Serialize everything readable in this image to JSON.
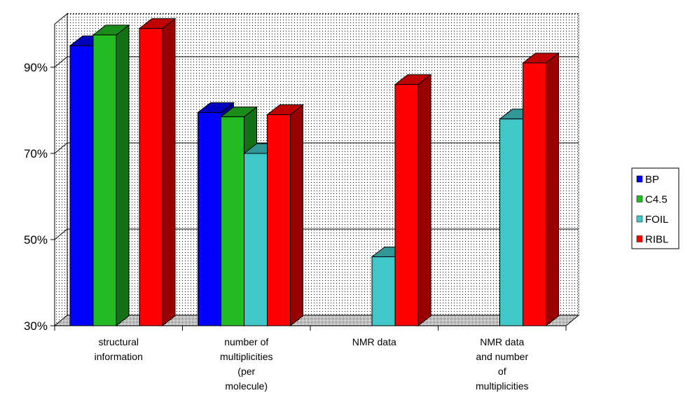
{
  "chart_data": {
    "type": "bar",
    "title": "",
    "xlabel": "",
    "ylabel": "",
    "ylim": [
      30,
      100
    ],
    "yticks": [
      "30%",
      "50%",
      "70%",
      "90%"
    ],
    "ytick_values": [
      30,
      50,
      70,
      90
    ],
    "grid": true,
    "legend_position": "right",
    "categories": [
      [
        "structural",
        "information"
      ],
      [
        "number of",
        "multiplicities",
        "(per",
        "molecule)"
      ],
      [
        "NMR data"
      ],
      [
        "NMR data",
        "and number",
        "of",
        "multiplicities"
      ]
    ],
    "series": [
      {
        "name": "BP",
        "color": "#0000ff",
        "values": [
          95,
          79.5,
          null,
          null
        ]
      },
      {
        "name": "C4.5",
        "color": "#22bb22",
        "values": [
          97.5,
          78.5,
          null,
          null
        ]
      },
      {
        "name": "FOIL",
        "color": "#40c8c8",
        "values": [
          null,
          70,
          46,
          78
        ]
      },
      {
        "name": "RIBL",
        "color": "#ff0000",
        "values": [
          99,
          79,
          86,
          91
        ]
      }
    ]
  }
}
